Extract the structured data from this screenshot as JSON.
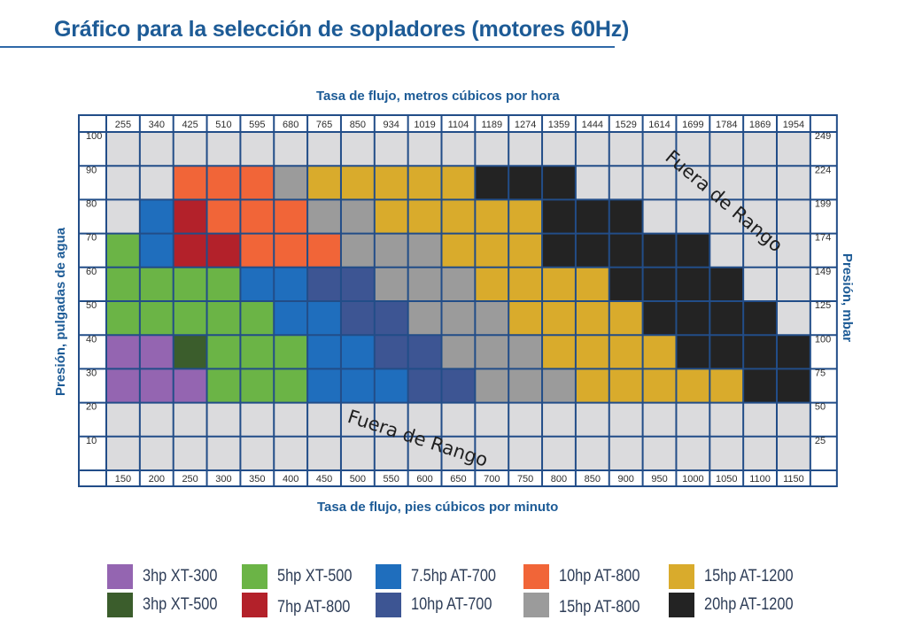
{
  "title": "Gráfico para la selección de sopladores (motores 60Hz)",
  "colors": {
    "grid": "#224d88",
    "empty": "#dbdbdd",
    "title": "#1d5b96"
  },
  "chart_data": {
    "type": "heatmap",
    "x_top_label": "Tasa de flujo, metros cúbicos por hora",
    "x_top_ticks": [
      "255",
      "340",
      "425",
      "510",
      "595",
      "680",
      "765",
      "850",
      "934",
      "1019",
      "1104",
      "1189",
      "1274",
      "1359",
      "1444",
      "1529",
      "1614",
      "1699",
      "1784",
      "1869",
      "1954"
    ],
    "x_bottom_label": "Tasa de flujo, pies cúbicos por minuto",
    "x_bottom_ticks": [
      "150",
      "200",
      "250",
      "300",
      "350",
      "400",
      "450",
      "500",
      "550",
      "600",
      "650",
      "700",
      "750",
      "800",
      "850",
      "900",
      "950",
      "1000",
      "1050",
      "1100",
      "1150"
    ],
    "y_left_label": "Presión, pulgadas de agua",
    "y_left_ticks": [
      "100",
      "90",
      "80",
      "70",
      "60",
      "50",
      "40",
      "30",
      "20",
      "10"
    ],
    "y_right_label": "Presión, mbar",
    "y_right_ticks": [
      "249",
      "224",
      "199",
      "174",
      "149",
      "125",
      "100",
      "75",
      "50",
      "25"
    ],
    "rows_top_to_bottom": [
      100,
      90,
      80,
      70,
      60,
      50,
      40,
      30,
      20,
      10
    ],
    "cells": [
      [
        "-",
        "-",
        "-",
        "-",
        "-",
        "-",
        "-",
        "-",
        "-",
        "-",
        "-",
        "-",
        "-",
        "-",
        "-",
        "-",
        "-",
        "-",
        "-",
        "-",
        "-"
      ],
      [
        "-",
        "-",
        "10",
        "10",
        "10",
        "15A",
        "15B",
        "15B",
        "15B",
        "15B",
        "15B",
        "20",
        "20",
        "20",
        "-",
        "-",
        "-",
        "-",
        "-",
        "-",
        "-"
      ],
      [
        "-",
        "7.5",
        "7",
        "10",
        "10",
        "10",
        "15A",
        "15A",
        "15B",
        "15B",
        "15B",
        "15B",
        "15B",
        "20",
        "20",
        "20",
        "-",
        "-",
        "-",
        "-",
        "-"
      ],
      [
        "5",
        "7.5",
        "7",
        "7",
        "10",
        "10",
        "10",
        "15A",
        "15A",
        "15A",
        "15B",
        "15B",
        "15B",
        "20",
        "20",
        "20",
        "20",
        "20",
        "-",
        "-",
        "-"
      ],
      [
        "5",
        "5",
        "5",
        "5",
        "7.5",
        "7.5",
        "10A",
        "10A",
        "15A",
        "15A",
        "15A",
        "15B",
        "15B",
        "15B",
        "15B",
        "20",
        "20",
        "20",
        "20",
        "-",
        "-"
      ],
      [
        "5",
        "5",
        "5",
        "5",
        "5",
        "7.5",
        "7.5",
        "10A",
        "10A",
        "15A",
        "15A",
        "15A",
        "15B",
        "15B",
        "15B",
        "15B",
        "20",
        "20",
        "20",
        "20",
        "-"
      ],
      [
        "3",
        "3",
        "3B",
        "5",
        "5",
        "5",
        "7.5",
        "7.5",
        "10A",
        "10A",
        "15A",
        "15A",
        "15A",
        "15B",
        "15B",
        "15B",
        "15B",
        "20",
        "20",
        "20",
        "20"
      ],
      [
        "3",
        "3",
        "3",
        "5",
        "5",
        "5",
        "7.5",
        "7.5",
        "7.5",
        "10A",
        "10A",
        "15A",
        "15A",
        "15A",
        "15B",
        "15B",
        "15B",
        "15B",
        "15B",
        "20",
        "20"
      ],
      [
        "-",
        "-",
        "-",
        "-",
        "-",
        "-",
        "-",
        "-",
        "-",
        "-",
        "-",
        "-",
        "-",
        "-",
        "-",
        "-",
        "-",
        "-",
        "-",
        "-",
        "-"
      ],
      [
        "-",
        "-",
        "-",
        "-",
        "-",
        "-",
        "-",
        "-",
        "-",
        "-",
        "-",
        "-",
        "-",
        "-",
        "-",
        "-",
        "-",
        "-",
        "-",
        "-",
        "-"
      ]
    ],
    "annotations": [
      "Fuera de Rango",
      "Fuera de Rango"
    ],
    "legend": [
      {
        "code": "3",
        "label": "3hp XT-300",
        "color": "#9465b1"
      },
      {
        "code": "3B",
        "label": "3hp XT-500",
        "color": "#3b5d2c"
      },
      {
        "code": "5",
        "label": "5hp XT-500",
        "color": "#6bb446"
      },
      {
        "code": "7",
        "label": "7hp AT-800",
        "color": "#b3212a"
      },
      {
        "code": "7.5",
        "label": "7.5hp AT-700",
        "color": "#1f6ebd"
      },
      {
        "code": "10A",
        "label": "10hp AT-700",
        "color": "#3d5593"
      },
      {
        "code": "10",
        "label": "10hp AT-800",
        "color": "#f16538"
      },
      {
        "code": "15A",
        "label": "15hp AT-800",
        "color": "#9b9b9b"
      },
      {
        "code": "15B",
        "label": "15hp AT-1200",
        "color": "#d9ab2c"
      },
      {
        "code": "20",
        "label": "20hp AT-1200",
        "color": "#232323"
      }
    ]
  }
}
